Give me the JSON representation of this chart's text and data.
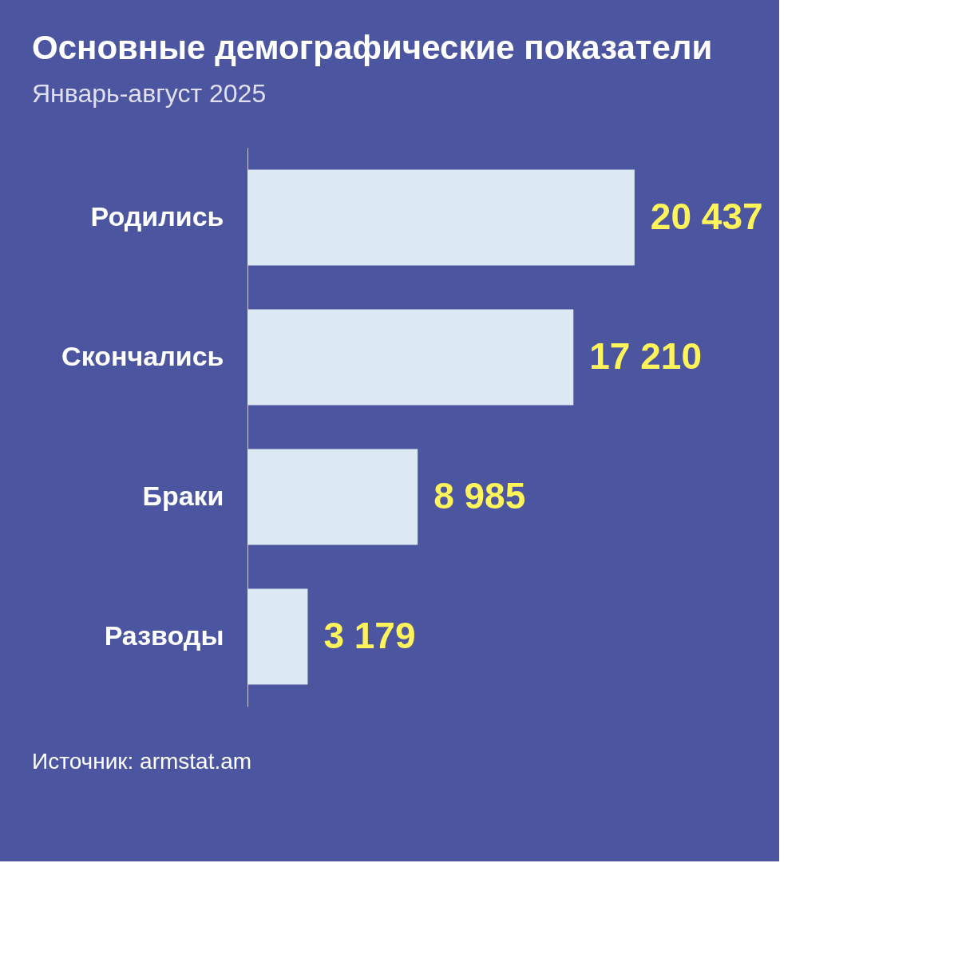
{
  "chart_data": {
    "type": "bar",
    "orientation": "horizontal",
    "title": "Основные демографические показатели",
    "subtitle": "Январь-август 2025",
    "categories": [
      "Родились",
      "Скончались",
      "Браки",
      "Разводы"
    ],
    "values": [
      20437,
      17210,
      8985,
      3179
    ],
    "color": "#dce9f3",
    "value_labels": [
      "20 437",
      "17 210",
      "8 985",
      "3 179"
    ],
    "tick_labels": "y",
    "grid": false,
    "annotations": [
      "Источник: armstat.am"
    ]
  }
}
